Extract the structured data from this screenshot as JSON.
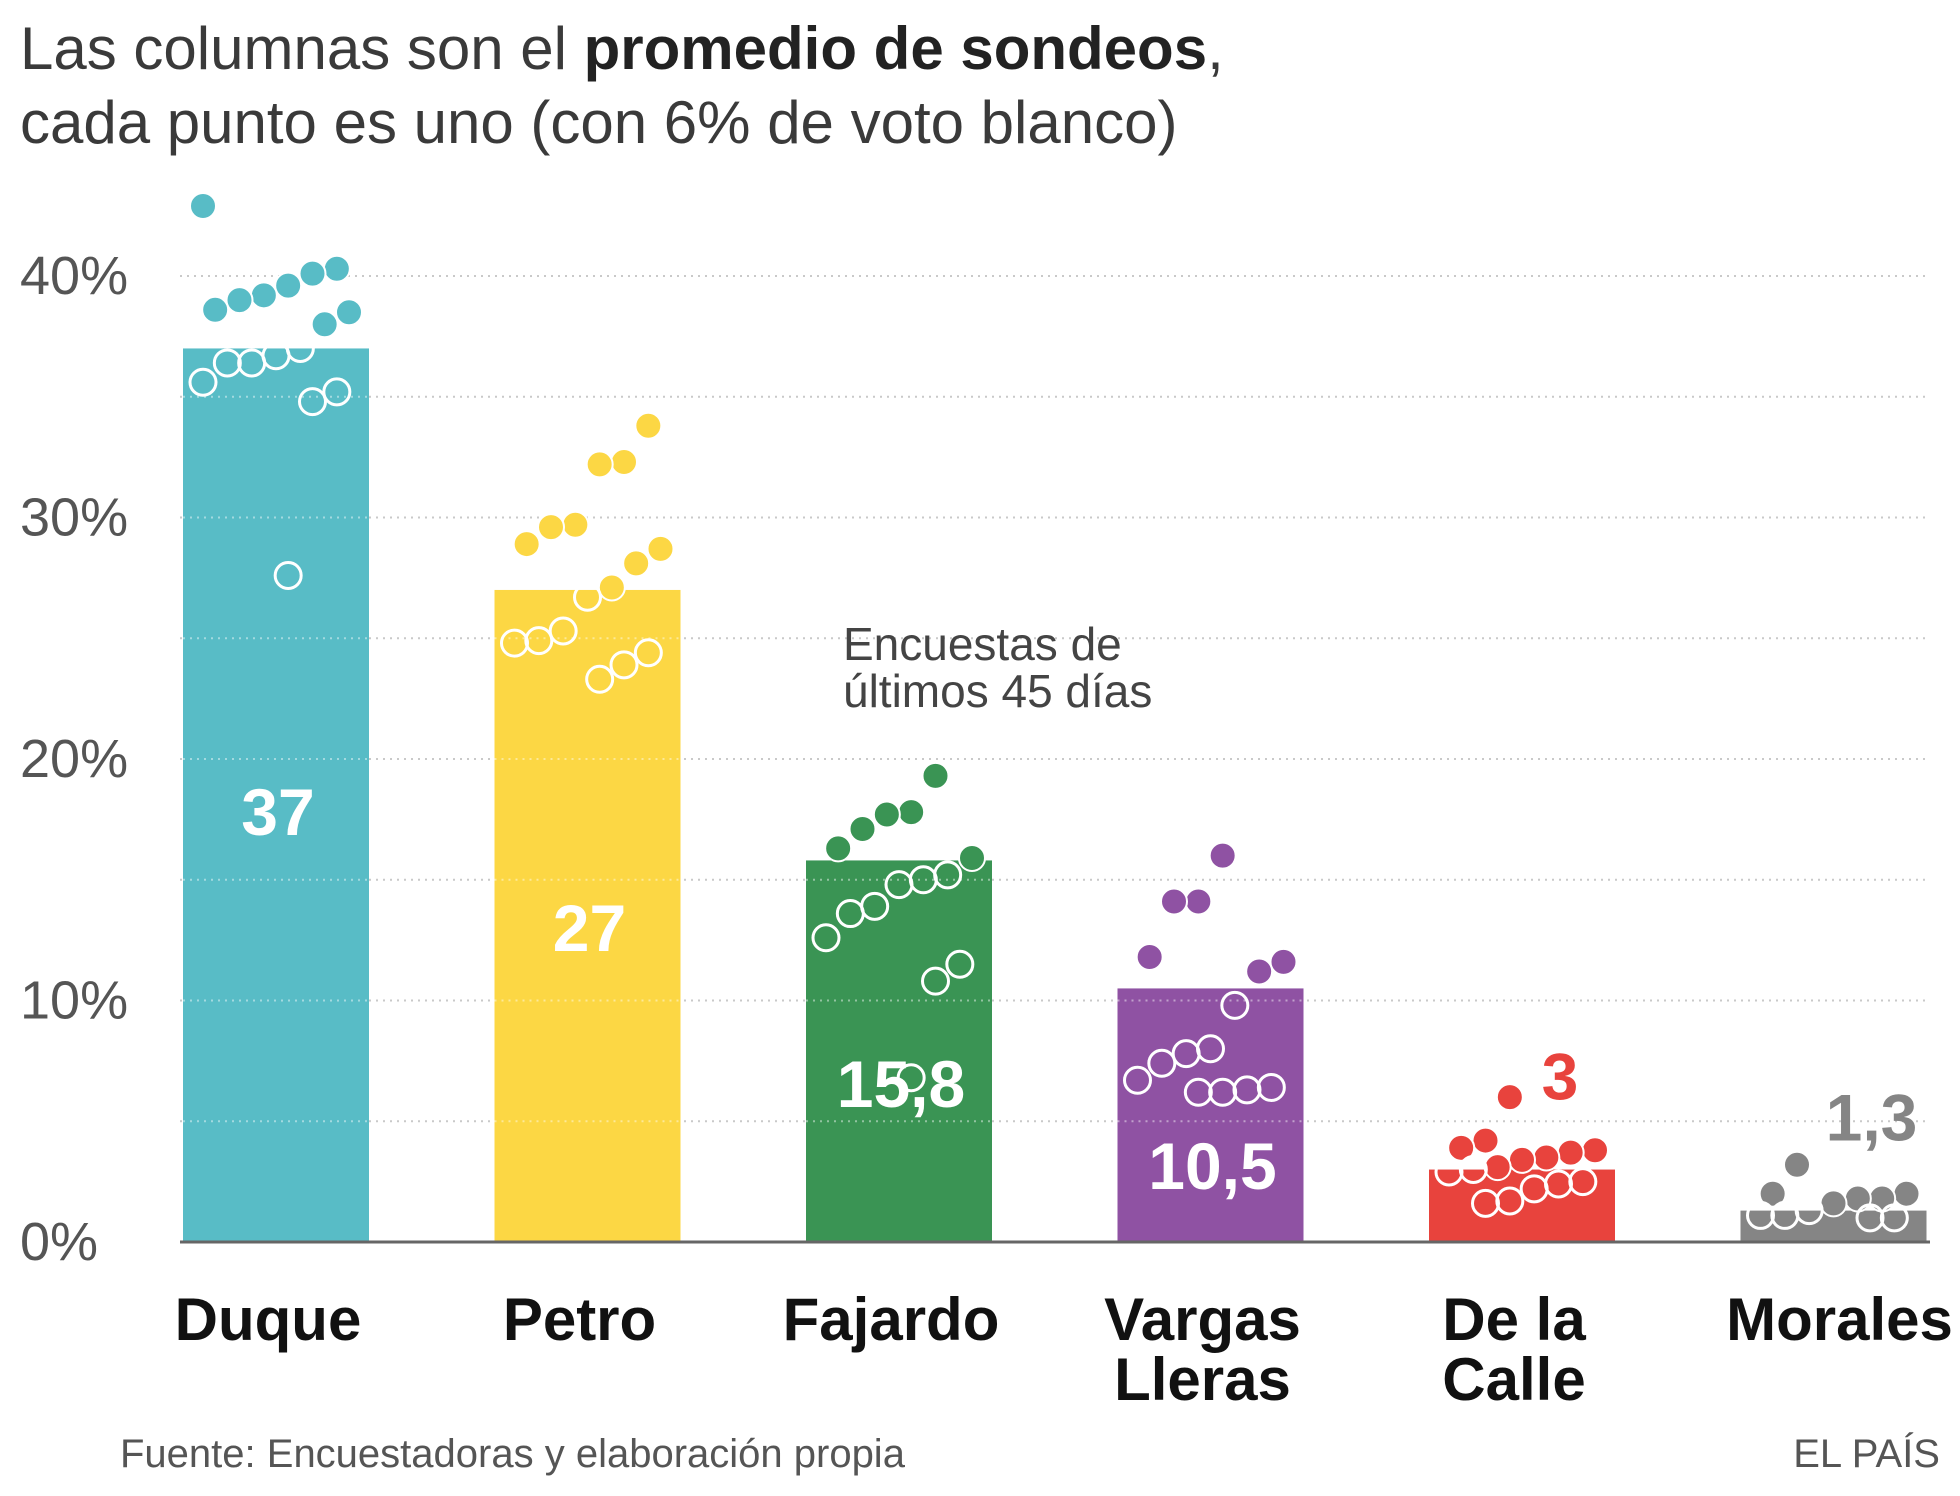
{
  "title": {
    "part1": "Las columnas son el ",
    "bold": "promedio de sondeos",
    "part2": ",",
    "line2": "cada punto es uno (con 6% de voto blanco)"
  },
  "annotation": {
    "line1": "Encuestas de",
    "line2": "últimos 45 días"
  },
  "footer": {
    "source": "Fuente: Encuestadoras y elaboración propia",
    "brand": "EL PAÍS"
  },
  "chart_data": {
    "type": "bar",
    "title": "Las columnas son el promedio de sondeos, cada punto es uno (con 6% de voto blanco)",
    "xlabel": "",
    "ylabel": "",
    "ylim": [
      0,
      40
    ],
    "yticks": [
      0,
      10,
      20,
      30,
      40
    ],
    "ytick_labels": [
      "0%",
      "10%",
      "20%",
      "30%",
      "40%"
    ],
    "grid": "dotted",
    "categories": [
      {
        "name": "Duque",
        "label_lines": [
          "Duque"
        ]
      },
      {
        "name": "Petro",
        "label_lines": [
          "Petro"
        ]
      },
      {
        "name": "Fajardo",
        "label_lines": [
          "Fajardo"
        ]
      },
      {
        "name": "Vargas Lleras",
        "label_lines": [
          "Vargas",
          "Lleras"
        ]
      },
      {
        "name": "De la Calle",
        "label_lines": [
          "De la",
          "Calle"
        ]
      },
      {
        "name": "Morales",
        "label_lines": [
          "Morales"
        ]
      }
    ],
    "values": [
      37,
      27,
      15.8,
      10.5,
      3,
      1.3
    ],
    "value_labels": [
      "37",
      "27",
      "15,8",
      "10,5",
      "3",
      "1,3"
    ],
    "value_label_position": [
      "inside",
      "inside",
      "inside",
      "inside",
      "above",
      "above"
    ],
    "colors": [
      "#58bcc6",
      "#fcd744",
      "#3a9454",
      "#8f52a3",
      "#e8433d",
      "#858585"
    ],
    "polls": [
      [
        42.9,
        40.3,
        40.1,
        39.6,
        39.2,
        39.0,
        38.6,
        38.5,
        38.0,
        37.0,
        36.7,
        36.4,
        36.4,
        35.6,
        35.2,
        34.8,
        27.6
      ],
      [
        33.8,
        32.3,
        32.2,
        29.7,
        29.6,
        28.9,
        28.7,
        28.1,
        27.1,
        26.7,
        25.3,
        24.9,
        24.8,
        24.4,
        23.9,
        23.3
      ],
      [
        19.3,
        17.8,
        17.7,
        17.1,
        16.3,
        15.9,
        15.2,
        15.0,
        14.8,
        13.9,
        13.6,
        12.6,
        11.5,
        10.8,
        6.8
      ],
      [
        16.0,
        14.1,
        14.1,
        11.8,
        11.6,
        11.2,
        9.8,
        8.0,
        7.8,
        7.4,
        6.7,
        6.4,
        6.3,
        6.2,
        6.2
      ],
      [
        6.0,
        4.2,
        3.9,
        3.8,
        3.7,
        3.5,
        3.4,
        3.1,
        3.0,
        2.9,
        2.5,
        2.4,
        2.2,
        1.7,
        1.6
      ],
      [
        3.2,
        2.0,
        2.0,
        1.8,
        1.8,
        1.6,
        1.3,
        1.1,
        1.1,
        1.0,
        1.0
      ]
    ],
    "annotation": "Encuestas de últimos 45 días"
  }
}
